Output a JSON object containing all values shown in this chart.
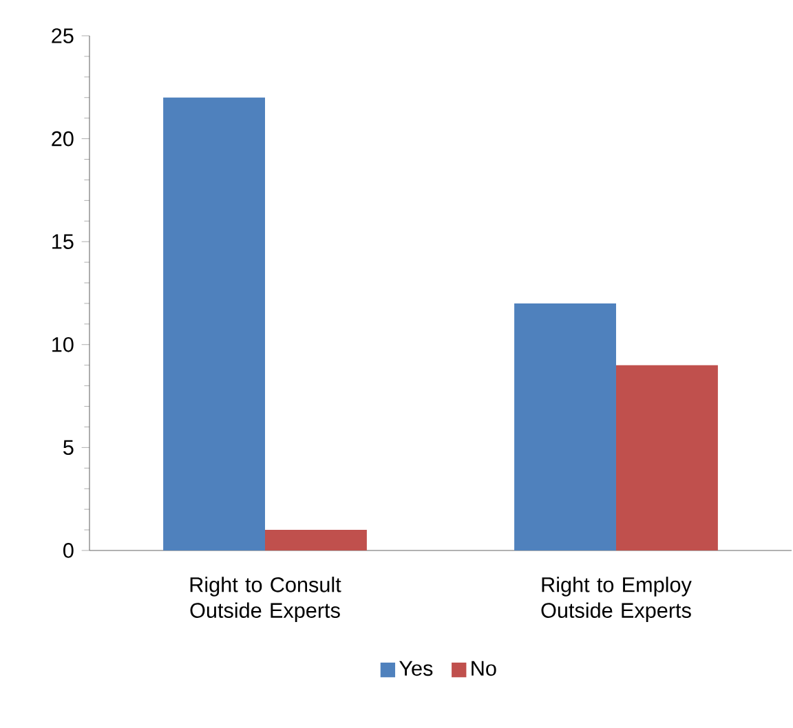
{
  "chart_data": {
    "type": "bar",
    "categories": [
      "Right to Consult Outside Experts",
      "Right to Employ Outside Experts"
    ],
    "series": [
      {
        "name": "Yes",
        "color": "#4f81bd",
        "values": [
          22,
          12
        ]
      },
      {
        "name": "No",
        "color": "#c0504d",
        "values": [
          1,
          9
        ]
      }
    ],
    "ylim": [
      0,
      25
    ],
    "yticks": [
      0,
      5,
      10,
      15,
      20,
      25
    ],
    "grid": false,
    "legend": "bottom"
  }
}
